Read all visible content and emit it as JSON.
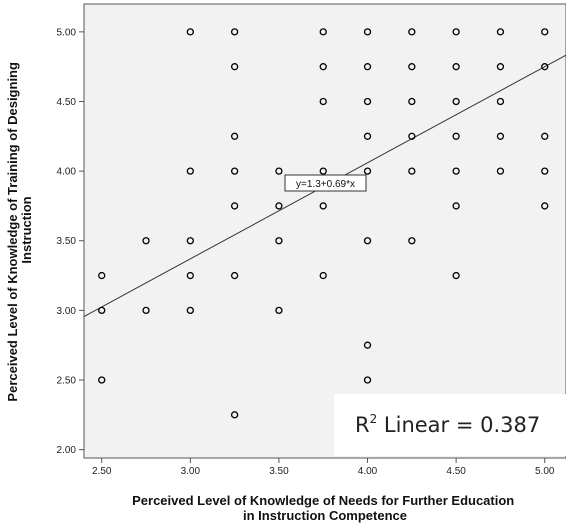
{
  "chart_data": {
    "type": "scatter",
    "title": "",
    "xlabel_lines": [
      "Perceived Level of Knowledge of Needs for Further Education",
      "in Instruction Competence"
    ],
    "ylabel_lines": [
      "Perceived Level of Knowledge of Training of Designing",
      "Instruction"
    ],
    "xlim": [
      2.4,
      5.12
    ],
    "ylim": [
      1.94,
      5.2
    ],
    "x_ticks": [
      2.5,
      3.0,
      3.5,
      4.0,
      4.5,
      5.0
    ],
    "x_tick_labels": [
      "2.50",
      "3.00",
      "3.50",
      "4.00",
      "4.50",
      "5.00"
    ],
    "y_ticks": [
      2.0,
      2.5,
      3.0,
      3.5,
      4.0,
      4.5,
      5.0
    ],
    "y_tick_labels": [
      "2.00",
      "2.50",
      "3.00",
      "3.50",
      "4.00",
      "4.50",
      "5.00"
    ],
    "grid": false,
    "points": [
      [
        2.5,
        3.25
      ],
      [
        2.5,
        3.0
      ],
      [
        2.5,
        2.5
      ],
      [
        2.75,
        3.5
      ],
      [
        2.75,
        3.0
      ],
      [
        3.0,
        5.0
      ],
      [
        3.0,
        4.0
      ],
      [
        3.0,
        3.5
      ],
      [
        3.0,
        3.25
      ],
      [
        3.0,
        3.0
      ],
      [
        3.25,
        5.0
      ],
      [
        3.25,
        4.75
      ],
      [
        3.25,
        4.25
      ],
      [
        3.25,
        4.0
      ],
      [
        3.25,
        3.75
      ],
      [
        3.25,
        3.25
      ],
      [
        3.25,
        2.25
      ],
      [
        3.5,
        4.0
      ],
      [
        3.5,
        3.75
      ],
      [
        3.5,
        3.5
      ],
      [
        3.5,
        3.0
      ],
      [
        3.75,
        5.0
      ],
      [
        3.75,
        4.75
      ],
      [
        3.75,
        4.5
      ],
      [
        3.75,
        4.0
      ],
      [
        3.75,
        3.75
      ],
      [
        3.75,
        3.25
      ],
      [
        4.0,
        5.0
      ],
      [
        4.0,
        4.75
      ],
      [
        4.0,
        4.5
      ],
      [
        4.0,
        4.25
      ],
      [
        4.0,
        4.0
      ],
      [
        4.0,
        3.5
      ],
      [
        4.0,
        2.75
      ],
      [
        4.0,
        2.5
      ],
      [
        4.25,
        5.0
      ],
      [
        4.25,
        4.75
      ],
      [
        4.25,
        4.5
      ],
      [
        4.25,
        4.25
      ],
      [
        4.25,
        4.0
      ],
      [
        4.25,
        3.5
      ],
      [
        4.5,
        5.0
      ],
      [
        4.5,
        4.75
      ],
      [
        4.5,
        4.5
      ],
      [
        4.5,
        4.25
      ],
      [
        4.5,
        4.0
      ],
      [
        4.5,
        3.75
      ],
      [
        4.5,
        3.25
      ],
      [
        4.75,
        5.0
      ],
      [
        4.75,
        4.75
      ],
      [
        4.75,
        4.5
      ],
      [
        4.75,
        4.25
      ],
      [
        4.75,
        4.0
      ],
      [
        5.0,
        5.0
      ],
      [
        5.0,
        4.75
      ],
      [
        5.0,
        4.25
      ],
      [
        5.0,
        4.0
      ],
      [
        5.0,
        3.75
      ]
    ],
    "fit_line": {
      "intercept": 1.3,
      "slope": 0.69,
      "label": "y=1.3+0.69*x"
    },
    "r2_prefix": "R",
    "r2_sup": "2",
    "r2_suffix": " Linear = 0.387",
    "colors": {
      "marker": "#000000",
      "fit_line": "#333333",
      "plot_bg": "#f2f2f2",
      "frame": "#555555"
    }
  }
}
